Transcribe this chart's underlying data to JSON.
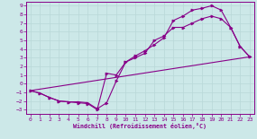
{
  "background_color": "#cce8e8",
  "grid_color": "#aacccc",
  "line_color": "#880088",
  "xlabel": "Windchill (Refroidissement éolien,°C)",
  "xlim": [
    -0.5,
    23.5
  ],
  "ylim": [
    -3.5,
    9.5
  ],
  "xticks": [
    0,
    1,
    2,
    3,
    4,
    5,
    6,
    7,
    8,
    9,
    10,
    11,
    12,
    13,
    14,
    15,
    16,
    17,
    18,
    19,
    20,
    21,
    22,
    23
  ],
  "yticks": [
    -3,
    -2,
    -1,
    0,
    1,
    2,
    3,
    4,
    5,
    6,
    7,
    8,
    9
  ],
  "line1_x": [
    0,
    1,
    2,
    3,
    4,
    5,
    6,
    7,
    8,
    9,
    10,
    11,
    12,
    13,
    14,
    15,
    16,
    17,
    18,
    19,
    20,
    21,
    22,
    23
  ],
  "line1_y": [
    -0.8,
    -1.1,
    -1.6,
    -2.0,
    -2.1,
    -2.1,
    -2.2,
    -2.9,
    -2.2,
    0.3,
    2.5,
    3.2,
    3.8,
    4.5,
    5.3,
    7.3,
    7.8,
    8.5,
    8.7,
    9.0,
    8.5,
    6.5,
    4.3,
    3.1
  ],
  "line2_x": [
    0,
    1,
    2,
    3,
    4,
    5,
    6,
    7,
    8,
    9,
    10,
    11,
    12,
    13,
    14,
    15,
    16,
    17,
    18,
    19,
    20,
    21,
    22,
    23
  ],
  "line2_y": [
    -0.8,
    -1.1,
    -1.6,
    -2.0,
    -2.1,
    -2.2,
    -2.3,
    -3.0,
    1.2,
    1.0,
    2.5,
    3.0,
    3.5,
    5.0,
    5.5,
    6.5,
    6.5,
    7.0,
    7.5,
    7.8,
    7.5,
    6.5,
    4.3,
    3.1
  ],
  "line3_x": [
    0,
    23
  ],
  "line3_y": [
    -0.8,
    3.1
  ]
}
